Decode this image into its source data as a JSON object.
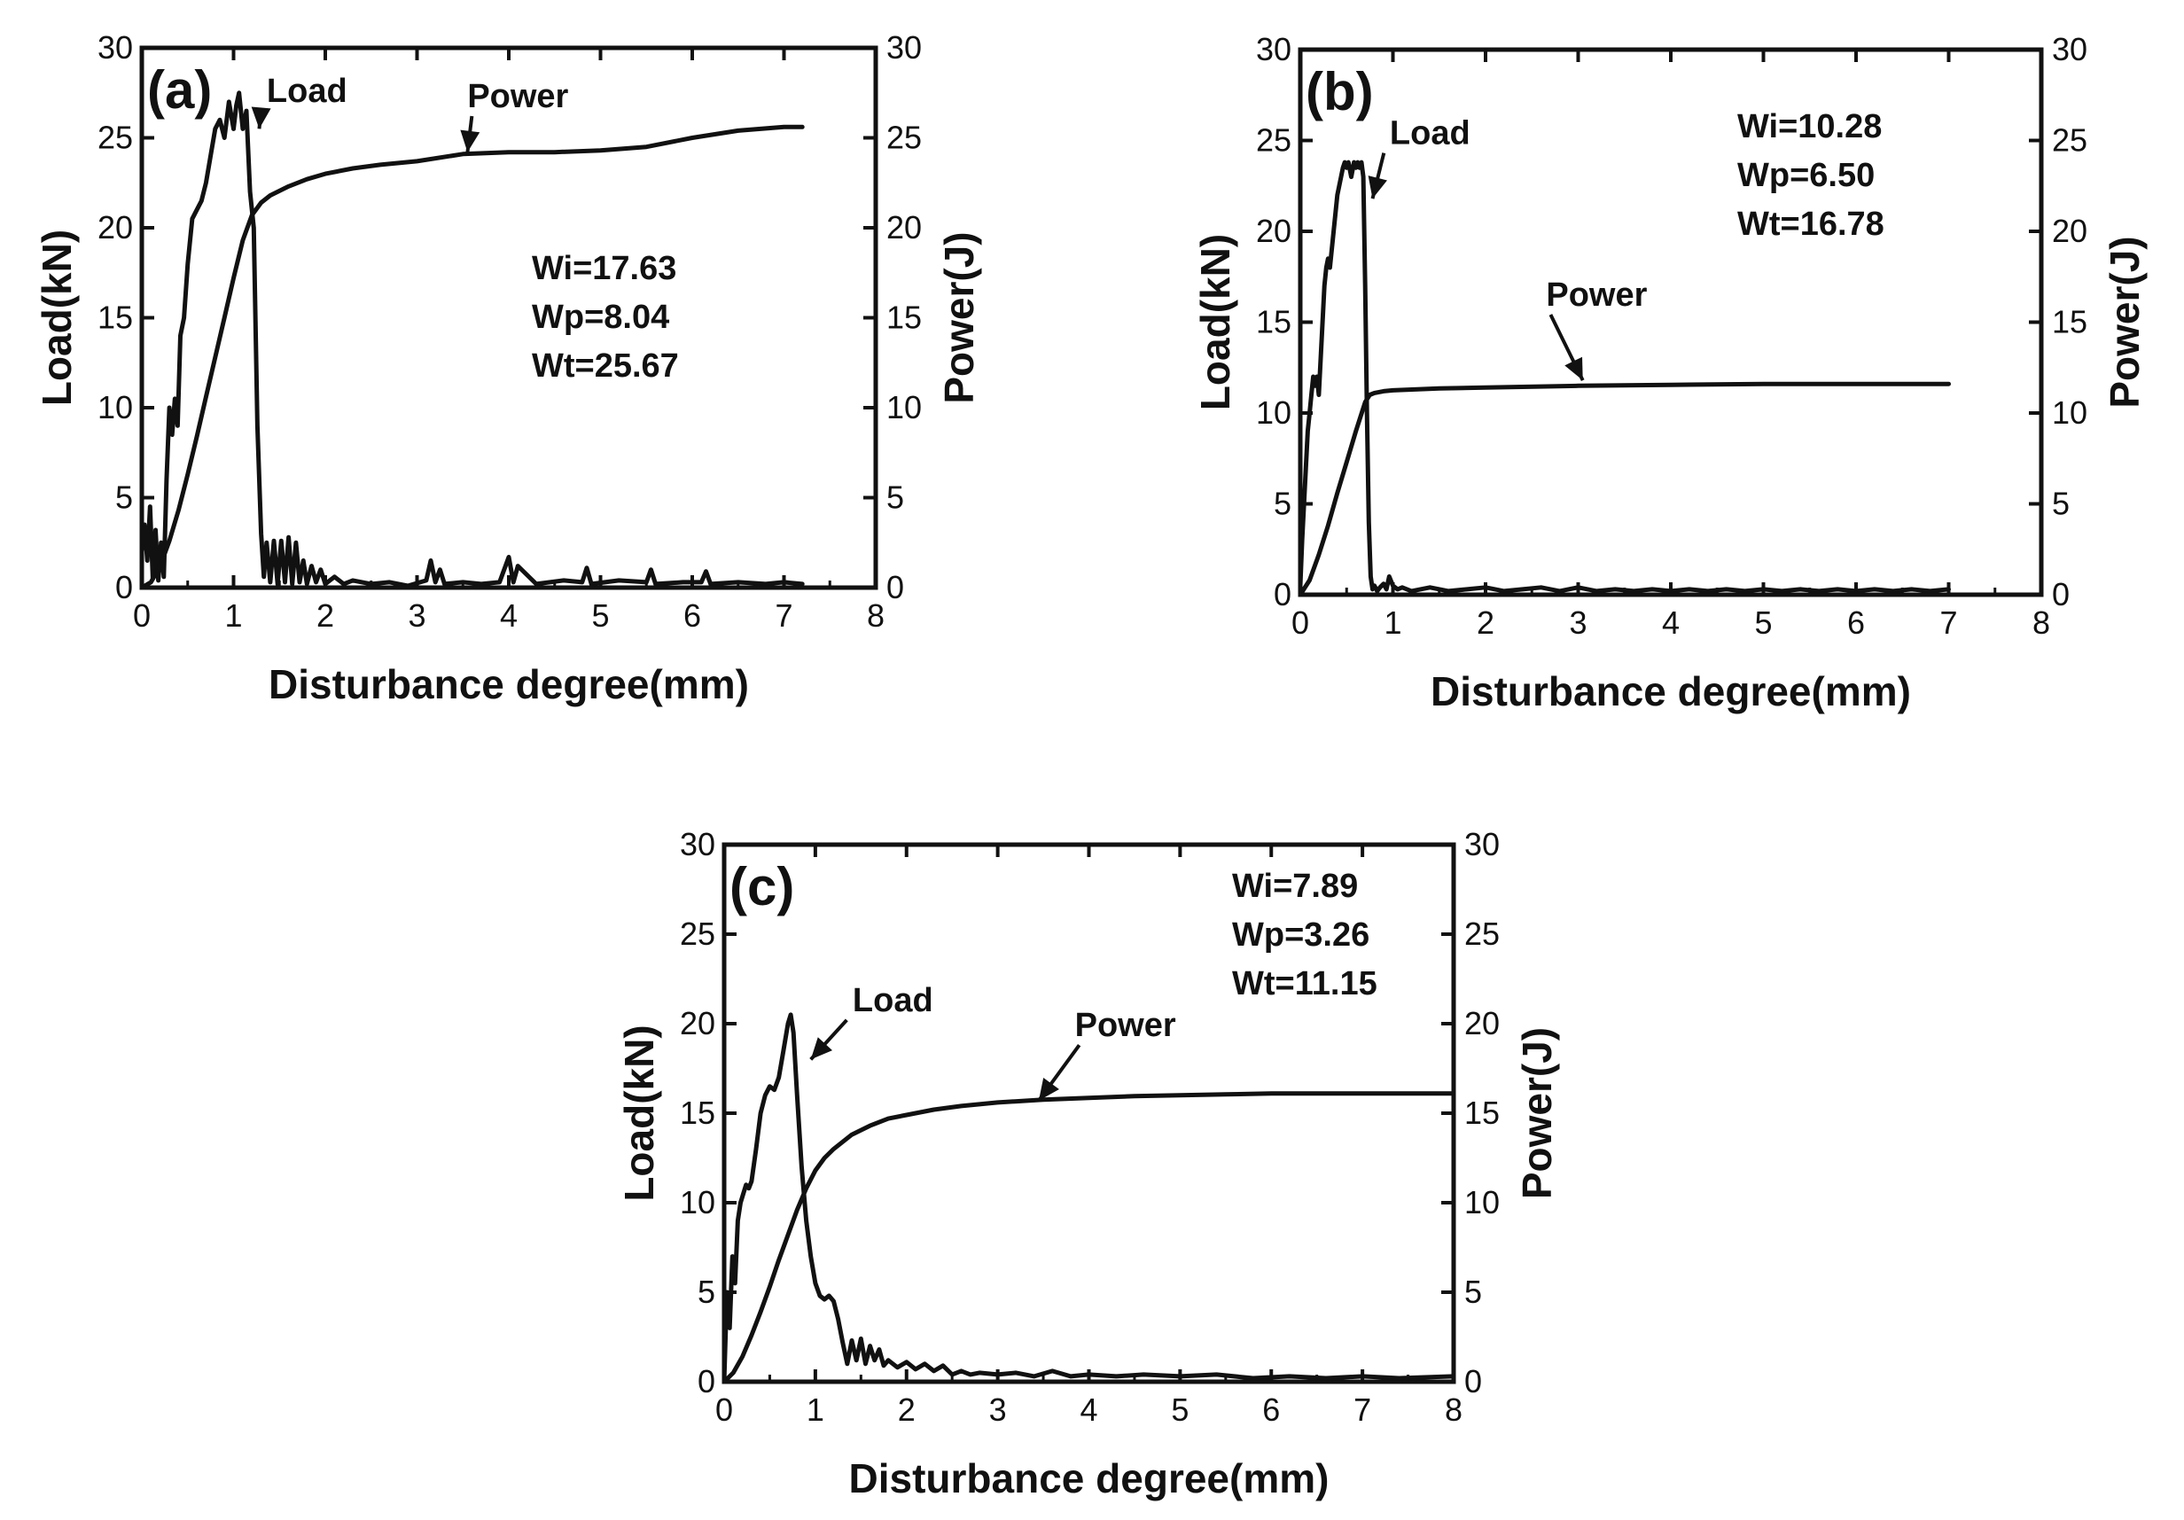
{
  "chart_data": [
    {
      "type": "line",
      "panel_label": "(a)",
      "xlabel": "Disturbance degree(mm)",
      "ylabel": "Load(kN)",
      "y2label": "Power(J)",
      "xlim": [
        0,
        8
      ],
      "ylim": [
        0,
        30
      ],
      "y2lim": [
        0,
        30
      ],
      "x_ticks": [
        "0",
        "1",
        "2",
        "3",
        "4",
        "5",
        "6",
        "7",
        "8"
      ],
      "y_ticks": [
        "0",
        "5",
        "10",
        "15",
        "20",
        "25",
        "30"
      ],
      "y2_ticks": [
        "0",
        "5",
        "10",
        "15",
        "20",
        "25",
        "30"
      ],
      "annotations": [
        {
          "label": "Load",
          "text_x": 1.8,
          "text_y": 27.0,
          "arrow_to": [
            1.28,
            25.5
          ]
        },
        {
          "label": "Power",
          "text_x": 4.1,
          "text_y": 26.7,
          "arrow_to": [
            3.55,
            24.2
          ]
        }
      ],
      "stats": [
        "Wi=17.63",
        "Wp=8.04",
        "Wt=25.67"
      ],
      "series": [
        {
          "name": "Load",
          "axis": "left",
          "x": [
            0,
            0.03,
            0.06,
            0.09,
            0.12,
            0.15,
            0.18,
            0.21,
            0.24,
            0.27,
            0.3,
            0.33,
            0.36,
            0.39,
            0.42,
            0.46,
            0.5,
            0.55,
            0.6,
            0.65,
            0.7,
            0.75,
            0.8,
            0.85,
            0.9,
            0.95,
            1.0,
            1.03,
            1.06,
            1.1,
            1.14,
            1.18,
            1.22,
            1.26,
            1.3,
            1.33,
            1.36,
            1.4,
            1.44,
            1.48,
            1.52,
            1.56,
            1.6,
            1.64,
            1.68,
            1.72,
            1.76,
            1.8,
            1.85,
            1.9,
            1.95,
            2.0,
            2.1,
            2.2,
            2.3,
            2.5,
            2.7,
            2.9,
            3.1,
            3.15,
            3.2,
            3.25,
            3.3,
            3.5,
            3.7,
            3.9,
            4.0,
            4.05,
            4.1,
            4.3,
            4.6,
            4.8,
            4.85,
            4.9,
            5.2,
            5.5,
            5.55,
            5.6,
            5.9,
            6.1,
            6.15,
            6.2,
            6.5,
            6.8,
            7.0,
            7.2
          ],
          "y": [
            2,
            3.5,
            1.5,
            4.5,
            0.5,
            3.2,
            0.4,
            2.5,
            0.6,
            6,
            10,
            8.5,
            10.5,
            9,
            14,
            15,
            18,
            20.5,
            21,
            21.5,
            22.5,
            24,
            25.5,
            26,
            25,
            27,
            25.5,
            26.8,
            27.5,
            25.5,
            26.5,
            22,
            20,
            9,
            3,
            0.6,
            2.5,
            0.3,
            2.6,
            0.2,
            2.6,
            0.3,
            2.8,
            0.2,
            2.5,
            0.3,
            1.5,
            0.2,
            1.2,
            0.3,
            1.0,
            0.2,
            0.6,
            0.2,
            0.4,
            0.2,
            0.3,
            0.1,
            0.4,
            1.5,
            0.3,
            1.0,
            0.2,
            0.3,
            0.2,
            0.3,
            1.7,
            0.3,
            1.2,
            0.2,
            0.4,
            0.3,
            1.1,
            0.2,
            0.4,
            0.3,
            1.0,
            0.2,
            0.3,
            0.3,
            0.9,
            0.2,
            0.3,
            0.2,
            0.3,
            0.2
          ]
        },
        {
          "name": "Power",
          "axis": "right",
          "x": [
            0,
            0.1,
            0.2,
            0.3,
            0.4,
            0.5,
            0.6,
            0.7,
            0.8,
            0.9,
            1.0,
            1.1,
            1.2,
            1.3,
            1.4,
            1.6,
            1.8,
            2.0,
            2.3,
            2.6,
            3.0,
            3.5,
            4.0,
            4.5,
            5.0,
            5.5,
            6.0,
            6.5,
            7.0,
            7.2
          ],
          "y": [
            0,
            0.3,
            1.2,
            2.6,
            4.3,
            6.3,
            8.4,
            10.6,
            12.8,
            15.0,
            17.2,
            19.3,
            20.7,
            21.4,
            21.8,
            22.3,
            22.7,
            23.0,
            23.3,
            23.5,
            23.7,
            24.1,
            24.2,
            24.2,
            24.3,
            24.5,
            25.0,
            25.4,
            25.6,
            25.6
          ]
        }
      ]
    },
    {
      "type": "line",
      "panel_label": "(b)",
      "xlabel": "Disturbance degree(mm)",
      "ylabel": "Load(kN)",
      "y2label": "Power(J)",
      "xlim": [
        0,
        8
      ],
      "ylim": [
        0,
        30
      ],
      "y2lim": [
        0,
        30
      ],
      "x_ticks": [
        "0",
        "1",
        "2",
        "3",
        "4",
        "5",
        "6",
        "7",
        "8"
      ],
      "y_ticks": [
        "0",
        "5",
        "10",
        "15",
        "20",
        "25",
        "30"
      ],
      "y2_ticks": [
        "0",
        "5",
        "10",
        "15",
        "20",
        "25",
        "30"
      ],
      "annotations": [
        {
          "label": "Load",
          "text_x": 1.4,
          "text_y": 24.8,
          "arrow_to": [
            0.78,
            21.8
          ]
        },
        {
          "label": "Power",
          "text_x": 3.2,
          "text_y": 15.9,
          "arrow_to": [
            3.05,
            11.8
          ]
        }
      ],
      "stats": [
        "Wi=10.28",
        "Wp=6.50",
        "Wt=16.78"
      ],
      "series": [
        {
          "name": "Load",
          "axis": "left",
          "x": [
            0,
            0.02,
            0.04,
            0.06,
            0.08,
            0.1,
            0.12,
            0.14,
            0.16,
            0.18,
            0.2,
            0.22,
            0.24,
            0.26,
            0.28,
            0.3,
            0.32,
            0.34,
            0.36,
            0.38,
            0.4,
            0.42,
            0.44,
            0.46,
            0.48,
            0.5,
            0.52,
            0.55,
            0.58,
            0.6,
            0.62,
            0.64,
            0.66,
            0.68,
            0.7,
            0.72,
            0.74,
            0.76,
            0.78,
            0.8,
            0.83,
            0.86,
            0.9,
            0.93,
            0.96,
            1.0,
            1.05,
            1.1,
            1.2,
            1.4,
            1.6,
            1.8,
            2.0,
            2.2,
            2.4,
            2.6,
            2.8,
            3.0,
            3.2,
            3.4,
            3.6,
            3.8,
            4.0,
            4.2,
            4.4,
            4.6,
            4.8,
            5.0,
            5.2,
            5.4,
            5.6,
            5.8,
            6.0,
            6.2,
            6.4,
            6.6,
            6.8,
            7.0
          ],
          "y": [
            0.5,
            3,
            5,
            7,
            9,
            10,
            11,
            12,
            11.5,
            12,
            11,
            13,
            15,
            17,
            18,
            18.5,
            18,
            19,
            20,
            21,
            22,
            22.5,
            23,
            23.5,
            23.8,
            23.5,
            23.8,
            23.0,
            23.8,
            23.5,
            23.8,
            23.5,
            23.8,
            23.0,
            17,
            10,
            4,
            1.0,
            0.3,
            0.5,
            0.2,
            0.4,
            0.6,
            0.3,
            1.0,
            0.5,
            0.3,
            0.4,
            0.2,
            0.4,
            0.2,
            0.3,
            0.4,
            0.2,
            0.3,
            0.4,
            0.2,
            0.4,
            0.2,
            0.3,
            0.2,
            0.3,
            0.2,
            0.3,
            0.2,
            0.3,
            0.2,
            0.3,
            0.2,
            0.3,
            0.2,
            0.3,
            0.2,
            0.3,
            0.2,
            0.3,
            0.2,
            0.3
          ]
        },
        {
          "name": "Power",
          "axis": "right",
          "x": [
            0,
            0.1,
            0.2,
            0.3,
            0.4,
            0.5,
            0.6,
            0.7,
            0.75,
            0.8,
            0.9,
            1.0,
            1.5,
            2.0,
            3.0,
            4.0,
            5.0,
            6.0,
            7.0
          ],
          "y": [
            0,
            0.8,
            2.2,
            3.8,
            5.6,
            7.3,
            9.0,
            10.6,
            11.0,
            11.1,
            11.2,
            11.25,
            11.35,
            11.4,
            11.5,
            11.55,
            11.6,
            11.6,
            11.6
          ]
        }
      ]
    },
    {
      "type": "line",
      "panel_label": "(c)",
      "xlabel": "Disturbance degree(mm)",
      "ylabel": "Load(kN)",
      "y2label": "Power(J)",
      "xlim": [
        0,
        8
      ],
      "ylim": [
        0,
        30
      ],
      "y2lim": [
        0,
        30
      ],
      "x_ticks": [
        "0",
        "1",
        "2",
        "3",
        "4",
        "5",
        "6",
        "7",
        "8"
      ],
      "y_ticks": [
        "0",
        "5",
        "10",
        "15",
        "20",
        "25",
        "30"
      ],
      "y2_ticks": [
        "0",
        "5",
        "10",
        "15",
        "20",
        "25",
        "30"
      ],
      "annotations": [
        {
          "label": "Load",
          "text_x": 1.85,
          "text_y": 20.7,
          "arrow_to": [
            0.95,
            18.0
          ]
        },
        {
          "label": "Power",
          "text_x": 4.4,
          "text_y": 19.3,
          "arrow_to": [
            3.45,
            15.7
          ]
        }
      ],
      "stats": [
        "Wi=7.89",
        "Wp=3.26",
        "Wt=11.15"
      ],
      "series": [
        {
          "name": "Load",
          "axis": "left",
          "x": [
            0,
            0.03,
            0.06,
            0.09,
            0.12,
            0.15,
            0.18,
            0.21,
            0.24,
            0.27,
            0.3,
            0.35,
            0.4,
            0.45,
            0.5,
            0.55,
            0.6,
            0.65,
            0.7,
            0.73,
            0.76,
            0.8,
            0.85,
            0.9,
            0.95,
            1.0,
            1.05,
            1.1,
            1.15,
            1.2,
            1.25,
            1.3,
            1.35,
            1.4,
            1.45,
            1.5,
            1.55,
            1.6,
            1.65,
            1.7,
            1.75,
            1.8,
            1.9,
            2.0,
            2.1,
            2.2,
            2.3,
            2.4,
            2.5,
            2.6,
            2.7,
            2.8,
            3.0,
            3.2,
            3.4,
            3.6,
            3.8,
            4.0,
            4.3,
            4.6,
            5.0,
            5.4,
            5.8,
            6.2,
            6.6,
            7.0,
            7.4,
            8.0
          ],
          "y": [
            0,
            5,
            3,
            7,
            5.5,
            9,
            10,
            10.5,
            11,
            10.8,
            11.2,
            13,
            15,
            16,
            16.5,
            16.3,
            17,
            18.5,
            20,
            20.5,
            19.5,
            16,
            12,
            9,
            7,
            5.5,
            4.8,
            4.6,
            4.8,
            4.5,
            3.5,
            2.2,
            1.0,
            2.3,
            1.2,
            2.4,
            1.0,
            2.0,
            1.2,
            1.8,
            0.9,
            1.2,
            0.8,
            1.1,
            0.7,
            1.0,
            0.6,
            0.9,
            0.4,
            0.6,
            0.4,
            0.5,
            0.4,
            0.5,
            0.3,
            0.6,
            0.3,
            0.4,
            0.3,
            0.4,
            0.3,
            0.4,
            0.2,
            0.3,
            0.2,
            0.3,
            0.2,
            0.3
          ]
        },
        {
          "name": "Power",
          "axis": "right",
          "x": [
            0,
            0.1,
            0.2,
            0.3,
            0.4,
            0.5,
            0.6,
            0.7,
            0.8,
            0.9,
            1.0,
            1.1,
            1.2,
            1.4,
            1.6,
            1.8,
            2.0,
            2.3,
            2.6,
            3.0,
            3.5,
            4.0,
            4.5,
            5.0,
            5.5,
            6.0,
            7.0,
            8.0
          ],
          "y": [
            0,
            0.5,
            1.4,
            2.6,
            3.9,
            5.3,
            6.8,
            8.2,
            9.6,
            10.8,
            11.8,
            12.5,
            13.0,
            13.8,
            14.3,
            14.7,
            14.9,
            15.2,
            15.4,
            15.6,
            15.75,
            15.85,
            15.95,
            16.0,
            16.05,
            16.1,
            16.1,
            16.1
          ]
        }
      ]
    }
  ]
}
